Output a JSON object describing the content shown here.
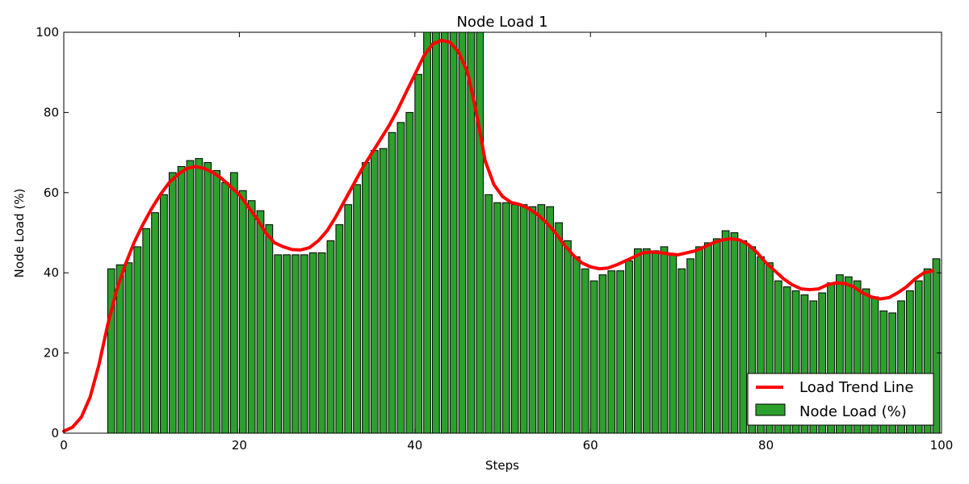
{
  "chart_data": {
    "type": "bar",
    "title": "Node Load 1",
    "xlabel": "Steps",
    "ylabel": "Node Load (%)",
    "xlim": [
      0,
      100
    ],
    "ylim": [
      0,
      100
    ],
    "xticks": [
      0,
      20,
      40,
      60,
      80,
      100
    ],
    "yticks": [
      0,
      20,
      40,
      60,
      80,
      100
    ],
    "grid": false,
    "legend_position": "bottom-right",
    "series": [
      {
        "name": "Node Load (%)",
        "type": "bar",
        "color": "#2ca02c",
        "x": [
          5,
          6,
          7,
          8,
          9,
          10,
          11,
          12,
          13,
          14,
          15,
          16,
          17,
          18,
          19,
          20,
          21,
          22,
          23,
          24,
          25,
          26,
          27,
          28,
          29,
          30,
          31,
          32,
          33,
          34,
          35,
          36,
          37,
          38,
          39,
          40,
          41,
          42,
          43,
          44,
          45,
          46,
          47,
          48,
          49,
          50,
          51,
          52,
          53,
          54,
          55,
          56,
          57,
          58,
          59,
          60,
          61,
          62,
          63,
          64,
          65,
          66,
          67,
          68,
          69,
          70,
          71,
          72,
          73,
          74,
          75,
          76,
          77,
          78,
          79,
          80,
          81,
          82,
          83,
          84,
          85,
          86,
          87,
          88,
          89,
          90,
          91,
          92,
          93,
          94,
          95,
          96,
          97,
          98,
          99
        ],
        "values": [
          41,
          42,
          42.5,
          46.5,
          51,
          55,
          59.5,
          65,
          66.5,
          68,
          68.5,
          67.5,
          65.5,
          62.5,
          65,
          60.5,
          58,
          55.5,
          52,
          44.5,
          44.5,
          44.5,
          44.5,
          45,
          45,
          48,
          52,
          57,
          62,
          67.5,
          70.5,
          71,
          75,
          77.5,
          80,
          89.5,
          100,
          100,
          100,
          100,
          100,
          100,
          100,
          59.5,
          57.5,
          57.5,
          57,
          57,
          56.5,
          57,
          56.5,
          52.5,
          48,
          44,
          41,
          38,
          39.5,
          40.5,
          40.5,
          43,
          46,
          46,
          45.5,
          46.5,
          44.5,
          41,
          43.5,
          46.5,
          47.5,
          48.5,
          50.5,
          50,
          48,
          46.5,
          44,
          42.5,
          38,
          36.5,
          35.5,
          34.5,
          33,
          35,
          37.5,
          39.5,
          39,
          38,
          36,
          34,
          30.5,
          30,
          33,
          35.5,
          38,
          41,
          43.5
        ]
      },
      {
        "name": "Load Trend Line",
        "type": "line",
        "color": "#ff0000",
        "x": [
          0,
          1,
          2,
          3,
          4,
          5,
          6,
          7,
          8,
          9,
          10,
          11,
          12,
          13,
          14,
          15,
          16,
          17,
          18,
          19,
          20,
          21,
          22,
          23,
          24,
          25,
          26,
          27,
          28,
          29,
          30,
          31,
          32,
          33,
          34,
          35,
          36,
          37,
          38,
          39,
          40,
          41,
          42,
          43,
          44,
          45,
          46,
          47,
          48,
          49,
          50,
          51,
          52,
          53,
          54,
          55,
          56,
          57,
          58,
          59,
          60,
          61,
          62,
          63,
          64,
          65,
          66,
          67,
          68,
          69,
          70,
          71,
          72,
          73,
          74,
          75,
          76,
          77,
          78,
          79,
          80,
          81,
          82,
          83,
          84,
          85,
          86,
          87,
          88,
          89,
          90,
          91,
          92,
          93,
          94,
          95,
          96,
          97,
          98,
          99
        ],
        "values": [
          0.5,
          1.5,
          4,
          9,
          17,
          27,
          35.5,
          42,
          47.5,
          52,
          56,
          59.5,
          62.5,
          64.5,
          66,
          66.5,
          66,
          65,
          63.5,
          61.5,
          59.5,
          56.5,
          53.5,
          50,
          47.5,
          46.5,
          45.8,
          45.7,
          46.3,
          48,
          50.5,
          54,
          58,
          62,
          66,
          69.5,
          73,
          76.5,
          80.5,
          85,
          89.5,
          94,
          97,
          98,
          97.5,
          95,
          90,
          80,
          68,
          62,
          59,
          57.5,
          57,
          56,
          54.5,
          52.5,
          50,
          47,
          44.5,
          42.5,
          41.5,
          41,
          41.2,
          42,
          43,
          44,
          45,
          45.2,
          45,
          44.7,
          44.5,
          45,
          45.5,
          46.5,
          47.5,
          48.2,
          48.5,
          48.2,
          47,
          45,
          42.5,
          40.5,
          38.5,
          37,
          36,
          35.8,
          36,
          37,
          37.5,
          37.3,
          36.5,
          35,
          34,
          33.5,
          33.8,
          35,
          36.5,
          38.5,
          40,
          40.5
        ]
      }
    ]
  }
}
